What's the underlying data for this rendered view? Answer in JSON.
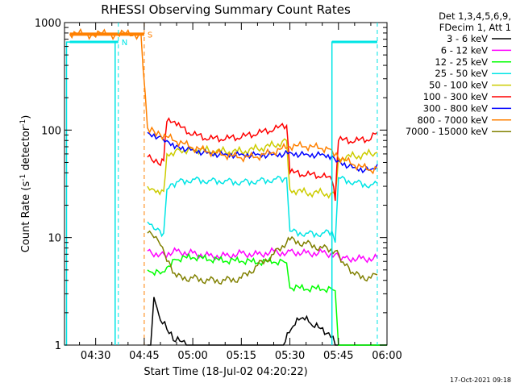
{
  "chart_data": {
    "type": "line",
    "title": "RHESSI Observing Summary Count Rates",
    "xlabel": "Start Time (18-Jul-02 04:20:22)",
    "ylabel_main": "Count Rate (s",
    "ylabel_sup1": "-1",
    "ylabel_mid": " detector",
    "ylabel_sup2": "-1",
    "ylabel_end": ")",
    "yscale": "log",
    "ylim": [
      1,
      1000
    ],
    "xlim_min": [
      260.37,
      360
    ],
    "x_ticks": [
      {
        "m": 270,
        "label": "04:30"
      },
      {
        "m": 285,
        "label": "04:45"
      },
      {
        "m": 300,
        "label": "05:00"
      },
      {
        "m": 315,
        "label": "05:15"
      },
      {
        "m": 330,
        "label": "05:30"
      },
      {
        "m": 345,
        "label": "05:45"
      },
      {
        "m": 360,
        "label": "06:00"
      }
    ],
    "y_ticks": [
      {
        "v": 1,
        "label": "1"
      },
      {
        "v": 10,
        "label": "10"
      },
      {
        "v": 100,
        "label": "100"
      },
      {
        "v": 1000,
        "label": "1000"
      }
    ],
    "legend_header": [
      "Det 1,3,4,5,6,9,",
      "FDecim 1, Att 1"
    ],
    "series": [
      {
        "name": "3 - 6 keV",
        "color": "#000000",
        "points": [
          [
            286,
            1
          ],
          [
            287,
            1
          ],
          [
            288,
            2.8
          ],
          [
            289,
            2.2
          ],
          [
            290,
            1.7
          ],
          [
            292,
            1.4
          ],
          [
            294,
            1.1
          ],
          [
            300,
            1
          ],
          [
            320,
            1
          ],
          [
            328,
            1
          ],
          [
            331,
            1.5
          ],
          [
            334,
            1.8
          ],
          [
            337,
            1.5
          ],
          [
            342,
            1.3
          ],
          [
            344,
            1
          ],
          [
            360,
            1
          ]
        ]
      },
      {
        "name": "6 - 12 keV",
        "color": "#ff00ff",
        "points": [
          [
            286,
            7.5
          ],
          [
            290,
            7
          ],
          [
            295,
            7.5
          ],
          [
            300,
            7.2
          ],
          [
            305,
            6.8
          ],
          [
            310,
            6.8
          ],
          [
            315,
            7.2
          ],
          [
            320,
            7
          ],
          [
            325,
            7.5
          ],
          [
            329,
            7.2
          ],
          [
            330,
            7.5
          ],
          [
            335,
            7.2
          ],
          [
            340,
            7.3
          ],
          [
            344,
            7
          ],
          [
            347,
            6.5
          ],
          [
            352,
            6.4
          ],
          [
            357,
            6.5
          ]
        ]
      },
      {
        "name": "12 - 25 keV",
        "color": "#00ff00",
        "points": [
          [
            286,
            5
          ],
          [
            287,
            4.8
          ],
          [
            290,
            4.6
          ],
          [
            292,
            5.3
          ],
          [
            295,
            6.2
          ],
          [
            300,
            6.5
          ],
          [
            305,
            6.2
          ],
          [
            310,
            6
          ],
          [
            315,
            6
          ],
          [
            320,
            5.8
          ],
          [
            325,
            5.9
          ],
          [
            329,
            5.8
          ],
          [
            330,
            3.4
          ],
          [
            335,
            3.3
          ],
          [
            340,
            3.3
          ],
          [
            344,
            3.2
          ],
          [
            345,
            1
          ],
          [
            360,
            1
          ]
        ]
      },
      {
        "name": "25 - 50 keV",
        "color": "#00e5e5",
        "points": [
          [
            286,
            14
          ],
          [
            288,
            12
          ],
          [
            291,
            11
          ],
          [
            292,
            28
          ],
          [
            295,
            33
          ],
          [
            300,
            35
          ],
          [
            305,
            34
          ],
          [
            310,
            34
          ],
          [
            315,
            33
          ],
          [
            320,
            34
          ],
          [
            325,
            35
          ],
          [
            329,
            36
          ],
          [
            330,
            11.5
          ],
          [
            335,
            11
          ],
          [
            340,
            11
          ],
          [
            343,
            11.5
          ],
          [
            344,
            9
          ],
          [
            345,
            36
          ],
          [
            350,
            33
          ],
          [
            355,
            31
          ],
          [
            357,
            32
          ]
        ]
      },
      {
        "name": "50 - 100 keV",
        "color": "#cccc00",
        "points": [
          [
            286,
            30
          ],
          [
            288,
            28
          ],
          [
            291,
            27
          ],
          [
            292,
            60
          ],
          [
            296,
            65
          ],
          [
            300,
            66
          ],
          [
            305,
            64
          ],
          [
            310,
            63
          ],
          [
            315,
            63
          ],
          [
            320,
            67
          ],
          [
            325,
            72
          ],
          [
            329,
            80
          ],
          [
            330,
            28
          ],
          [
            335,
            26
          ],
          [
            340,
            26
          ],
          [
            344,
            25
          ],
          [
            345,
            55
          ],
          [
            350,
            57
          ],
          [
            355,
            60
          ],
          [
            357,
            62
          ]
        ]
      },
      {
        "name": "100 - 300 keV",
        "color": "#ff0000",
        "points": [
          [
            286,
            56
          ],
          [
            288,
            50
          ],
          [
            290,
            47
          ],
          [
            291,
            52
          ],
          [
            292,
            120
          ],
          [
            295,
            110
          ],
          [
            300,
            90
          ],
          [
            305,
            82
          ],
          [
            310,
            82
          ],
          [
            315,
            85
          ],
          [
            320,
            92
          ],
          [
            325,
            100
          ],
          [
            329,
            110
          ],
          [
            330,
            40
          ],
          [
            335,
            38
          ],
          [
            340,
            37
          ],
          [
            343,
            34
          ],
          [
            344,
            22
          ],
          [
            345,
            80
          ],
          [
            350,
            78
          ],
          [
            355,
            82
          ],
          [
            357,
            95
          ]
        ]
      },
      {
        "name": "300 - 800 keV",
        "color": "#0000ff",
        "points": [
          [
            286,
            95
          ],
          [
            290,
            88
          ],
          [
            292,
            80
          ],
          [
            295,
            72
          ],
          [
            300,
            66
          ],
          [
            305,
            62
          ],
          [
            310,
            60
          ],
          [
            315,
            60
          ],
          [
            320,
            60
          ],
          [
            325,
            60
          ],
          [
            330,
            62
          ],
          [
            335,
            60
          ],
          [
            340,
            60
          ],
          [
            343,
            58
          ],
          [
            345,
            52
          ],
          [
            350,
            45
          ],
          [
            355,
            43
          ],
          [
            357,
            48
          ]
        ]
      },
      {
        "name": "800 - 7000 keV",
        "color": "#ff8000",
        "points": [
          [
            262,
            780
          ],
          [
            284,
            780
          ],
          [
            286,
            105
          ],
          [
            288,
            98
          ],
          [
            290,
            90
          ],
          [
            295,
            78
          ],
          [
            300,
            68
          ],
          [
            305,
            62
          ],
          [
            310,
            58
          ],
          [
            315,
            55
          ],
          [
            320,
            56
          ],
          [
            325,
            62
          ],
          [
            330,
            70
          ],
          [
            335,
            70
          ],
          [
            340,
            67
          ],
          [
            343,
            65
          ],
          [
            345,
            55
          ],
          [
            350,
            47
          ],
          [
            355,
            42
          ],
          [
            357,
            44
          ]
        ]
      },
      {
        "name": "7000 - 15000 keV",
        "color": "#808000",
        "points": [
          [
            286,
            11
          ],
          [
            288,
            10
          ],
          [
            290,
            8.5
          ],
          [
            292,
            6
          ],
          [
            295,
            4.3
          ],
          [
            300,
            4.2
          ],
          [
            305,
            4
          ],
          [
            310,
            4
          ],
          [
            315,
            4.2
          ],
          [
            320,
            5.5
          ],
          [
            325,
            7
          ],
          [
            329,
            9
          ],
          [
            330,
            9.5
          ],
          [
            335,
            8.8
          ],
          [
            340,
            8
          ],
          [
            344,
            7.5
          ],
          [
            347,
            5.5
          ],
          [
            350,
            4.5
          ],
          [
            355,
            4.2
          ],
          [
            357,
            4.5
          ]
        ]
      }
    ],
    "annotations": [
      {
        "label": "S",
        "color": "#ff8000",
        "m": 285,
        "y": 780,
        "x_from": 262,
        "dashed_x": 285
      },
      {
        "label": "N",
        "color": "#00e5e5",
        "m": 277,
        "y": 660,
        "x_from": 262,
        "dashed_x": 277
      },
      {
        "label": "",
        "color": "#00e5e5",
        "m": 357,
        "y": 660,
        "x_from": 343,
        "dashed_x": 357
      }
    ],
    "cyan_step": [
      [
        260.37,
        1
      ],
      [
        261,
        1
      ],
      [
        261,
        660
      ],
      [
        276,
        660
      ],
      [
        276,
        1
      ]
    ],
    "cyan_step_right": [
      [
        343,
        1
      ],
      [
        343,
        660
      ],
      [
        357,
        660
      ]
    ],
    "timestamp": "17-Oct-2021 09:18"
  }
}
